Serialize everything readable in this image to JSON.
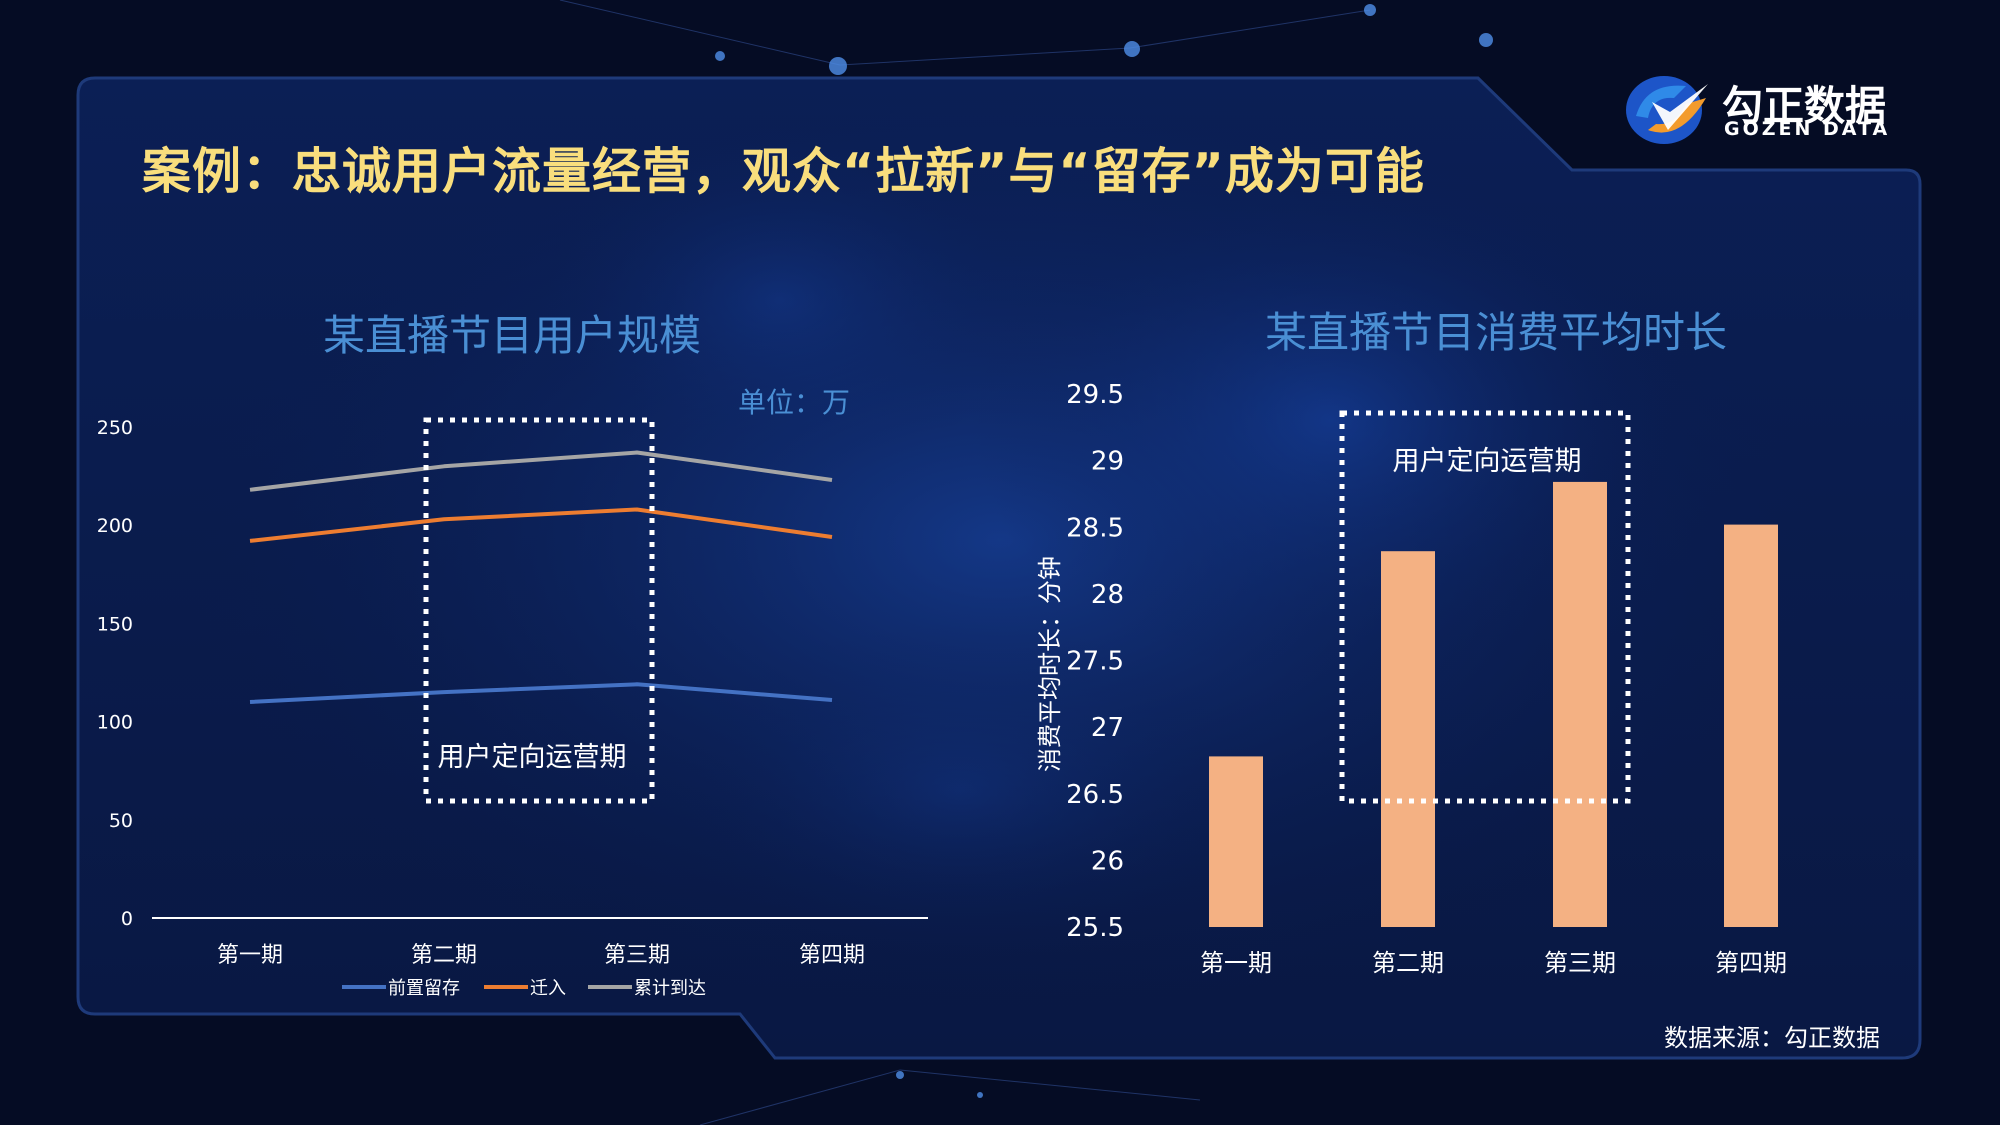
{
  "slide": {
    "title": "案例：忠诚用户流量经营，观众“拉新”与“留存”成为可能",
    "source_note": "数据来源：勾正数据"
  },
  "logo": {
    "name_cn": "勾正数据",
    "name_en": "GOZEN DATA"
  },
  "colors": {
    "title": "#f9de7d",
    "chart_title": "#4a8fd4",
    "series_retained": "#4472c4",
    "series_inflow": "#ed7d31",
    "series_total": "#a5a5a5",
    "bar": "#f4b183",
    "text": "#ffffff"
  },
  "chart_data": [
    {
      "type": "line",
      "title": "某直播节目用户规模",
      "unit_label": "单位：万",
      "categories": [
        "第一期",
        "第二期",
        "第三期",
        "第四期"
      ],
      "series": [
        {
          "name": "前置留存",
          "values": [
            110,
            115,
            119,
            111
          ]
        },
        {
          "name": "迁入",
          "values": [
            192,
            203,
            208,
            194
          ]
        },
        {
          "name": "累计到达",
          "values": [
            218,
            230,
            237,
            223
          ]
        }
      ],
      "ylim": [
        0,
        250
      ],
      "yticks": [
        "0",
        "50",
        "100",
        "150",
        "200",
        "250"
      ],
      "highlight": {
        "label": "用户定向运营期",
        "span": [
          "第二期",
          "第三期"
        ]
      },
      "legend_position": "bottom",
      "grid": false
    },
    {
      "type": "bar",
      "title": "某直播节目消费平均时长",
      "ylabel": "消费平均时长：分钟",
      "categories": [
        "第一期",
        "第二期",
        "第三期",
        "第四期"
      ],
      "values": [
        26.78,
        28.32,
        28.84,
        28.52
      ],
      "ylim": [
        25.5,
        29.5
      ],
      "yticks": [
        "25.5",
        "26",
        "26.5",
        "27",
        "27.5",
        "28",
        "28.5",
        "29",
        "29.5"
      ],
      "highlight": {
        "label": "用户定向运营期",
        "span": [
          "第二期",
          "第三期"
        ]
      },
      "grid": false
    }
  ]
}
